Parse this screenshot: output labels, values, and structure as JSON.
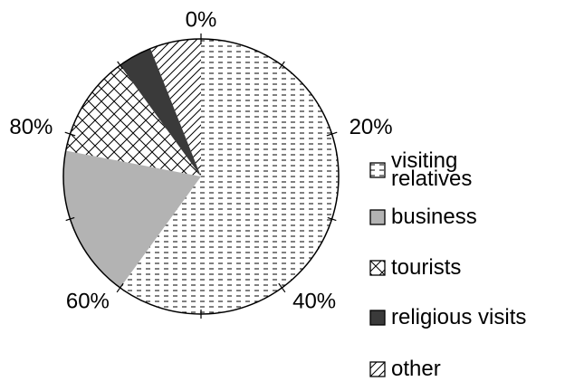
{
  "chart_data": {
    "type": "pie",
    "series": [
      {
        "name": "visiting relatives",
        "values": [
          60
        ]
      },
      {
        "name": "business",
        "values": [
          18
        ]
      },
      {
        "name": "tourists",
        "values": [
          12
        ]
      },
      {
        "name": "religious visits",
        "values": [
          4
        ]
      },
      {
        "name": "other",
        "values": [
          6
        ]
      }
    ],
    "ticks": [
      {
        "value": 0,
        "label": "0%"
      },
      {
        "value": 20,
        "label": "20%"
      },
      {
        "value": 40,
        "label": "40%"
      },
      {
        "value": 60,
        "label": "60%"
      },
      {
        "value": 80,
        "label": "80%"
      }
    ],
    "minor_ticks": [
      10,
      30,
      50,
      70,
      90
    ],
    "range": [
      0,
      100
    ]
  }
}
